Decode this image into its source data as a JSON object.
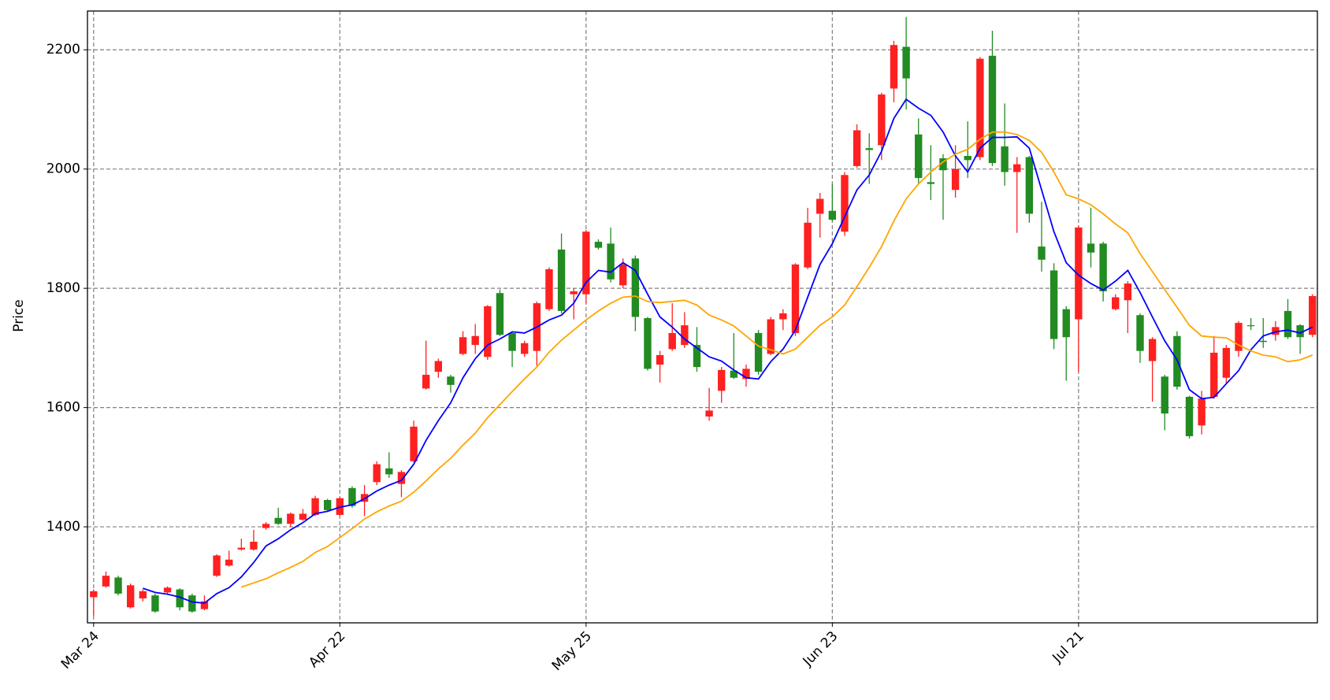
{
  "chart_data": {
    "type": "candlestick",
    "ylabel": "Price",
    "categories": [
      "Mar 24",
      null,
      null,
      null,
      null,
      null,
      null,
      null,
      null,
      null,
      null,
      null,
      null,
      null,
      null,
      null,
      null,
      null,
      null,
      null,
      "Apr 22",
      null,
      null,
      null,
      null,
      null,
      null,
      null,
      null,
      null,
      null,
      null,
      null,
      null,
      null,
      null,
      null,
      null,
      null,
      null,
      "May 25",
      null,
      null,
      null,
      null,
      null,
      null,
      null,
      null,
      null,
      null,
      null,
      null,
      null,
      null,
      null,
      null,
      null,
      null,
      null,
      "Jun 23",
      null,
      null,
      null,
      null,
      null,
      null,
      null,
      null,
      null,
      null,
      null,
      null,
      null,
      null,
      null,
      null,
      null,
      null,
      null,
      "Jul 21",
      null,
      null,
      null,
      null,
      null,
      null,
      null,
      null,
      null,
      null,
      null,
      null,
      null,
      null,
      null,
      null,
      null,
      null,
      null
    ],
    "open": [
      1282,
      1300,
      1315,
      1265,
      1280,
      1285,
      1290,
      1295,
      1285,
      1262,
      1318,
      1335,
      1362,
      1362,
      1398,
      1415,
      1405,
      1412,
      1420,
      1445,
      1420,
      1465,
      1442,
      1475,
      1498,
      1472,
      1510,
      1632,
      1660,
      1652,
      1690,
      1705,
      1685,
      1792,
      1725,
      1690,
      1695,
      1765,
      1865,
      1790,
      1790,
      1878,
      1875,
      1805,
      1850,
      1750,
      1672,
      1698,
      1705,
      1705,
      1585,
      1628,
      1662,
      1648,
      1725,
      1690,
      1748,
      1725,
      1835,
      1925,
      1930,
      1895,
      2005,
      2035,
      2040,
      2135,
      2205,
      2058,
      1978,
      2018,
      1965,
      2022,
      2020,
      2190,
      2038,
      1995,
      2020,
      1870,
      1830,
      1765,
      1748,
      1875,
      1875,
      1765,
      1780,
      1755,
      1678,
      1652,
      1720,
      1618,
      1570,
      1618,
      1650,
      1695,
      1738,
      1712,
      1722,
      1762,
      1738,
      1722
    ],
    "high": [
      1295,
      1325,
      1318,
      1305,
      1295,
      1288,
      1300,
      1297,
      1288,
      1285,
      1354,
      1360,
      1380,
      1395,
      1408,
      1432,
      1424,
      1430,
      1452,
      1447,
      1450,
      1468,
      1470,
      1510,
      1525,
      1495,
      1578,
      1712,
      1682,
      1655,
      1728,
      1740,
      1772,
      1798,
      1728,
      1712,
      1778,
      1835,
      1892,
      1800,
      1898,
      1882,
      1902,
      1850,
      1855,
      1752,
      1695,
      1775,
      1760,
      1735,
      1633,
      1668,
      1725,
      1672,
      1730,
      1752,
      1765,
      1842,
      1935,
      1960,
      1975,
      1995,
      2075,
      2060,
      2128,
      2215,
      2255,
      2085,
      2040,
      2025,
      2040,
      2080,
      2188,
      2232,
      2110,
      2020,
      2022,
      1945,
      1842,
      1770,
      1905,
      1935,
      1878,
      1790,
      1812,
      1758,
      1718,
      1655,
      1728,
      1620,
      1628,
      1720,
      1705,
      1745,
      1750,
      1750,
      1745,
      1782,
      1740,
      1790
    ],
    "low": [
      1250,
      1298,
      1285,
      1263,
      1275,
      1256,
      1288,
      1260,
      1256,
      1260,
      1316,
      1333,
      1360,
      1360,
      1395,
      1403,
      1400,
      1410,
      1418,
      1425,
      1418,
      1432,
      1418,
      1470,
      1482,
      1450,
      1508,
      1630,
      1650,
      1625,
      1688,
      1690,
      1680,
      1720,
      1668,
      1685,
      1670,
      1762,
      1758,
      1748,
      1775,
      1865,
      1810,
      1800,
      1728,
      1662,
      1642,
      1695,
      1700,
      1660,
      1578,
      1608,
      1648,
      1635,
      1655,
      1688,
      1730,
      1720,
      1832,
      1885,
      1912,
      1888,
      2002,
      1975,
      2015,
      2112,
      2100,
      1975,
      1948,
      1915,
      1952,
      1985,
      2015,
      2005,
      1972,
      1893,
      1910,
      1828,
      1698,
      1645,
      1660,
      1835,
      1778,
      1763,
      1725,
      1675,
      1610,
      1562,
      1630,
      1548,
      1555,
      1615,
      1640,
      1685,
      1730,
      1700,
      1712,
      1715,
      1690,
      1718
    ],
    "close": [
      1292,
      1318,
      1288,
      1302,
      1292,
      1258,
      1298,
      1265,
      1258,
      1275,
      1352,
      1345,
      1365,
      1375,
      1405,
      1405,
      1422,
      1422,
      1448,
      1428,
      1448,
      1435,
      1455,
      1505,
      1488,
      1492,
      1568,
      1655,
      1678,
      1638,
      1718,
      1720,
      1770,
      1722,
      1695,
      1708,
      1775,
      1832,
      1762,
      1795,
      1895,
      1868,
      1815,
      1840,
      1752,
      1665,
      1688,
      1725,
      1738,
      1668,
      1595,
      1663,
      1650,
      1665,
      1660,
      1748,
      1758,
      1840,
      1910,
      1950,
      1915,
      1990,
      2065,
      2032,
      2125,
      2208,
      2152,
      1985,
      1975,
      1998,
      2000,
      2015,
      2185,
      2010,
      1995,
      2008,
      1925,
      1848,
      1715,
      1718,
      1902,
      1860,
      1795,
      1785,
      1808,
      1695,
      1715,
      1590,
      1635,
      1552,
      1615,
      1692,
      1700,
      1742,
      1737,
      1710,
      1735,
      1718,
      1718,
      1787
    ],
    "up_color": "#ff2020",
    "down_color": "#228b22",
    "series": [
      {
        "color": "#0000ff",
        "values": [
          null,
          null,
          null,
          null,
          1297,
          1290,
          1287,
          1282,
          1274,
          1272,
          1288,
          1298,
          1316,
          1340,
          1368,
          1380,
          1395,
          1407,
          1422,
          1426,
          1433,
          1437,
          1447,
          1460,
          1470,
          1478,
          1505,
          1545,
          1578,
          1608,
          1650,
          1682,
          1705,
          1715,
          1727,
          1725,
          1735,
          1747,
          1755,
          1775,
          1810,
          1830,
          1827,
          1843,
          1830,
          1790,
          1752,
          1735,
          1715,
          1700,
          1685,
          1678,
          1663,
          1650,
          1648,
          1677,
          1698,
          1730,
          1785,
          1840,
          1875,
          1920,
          1965,
          1990,
          2030,
          2085,
          2117,
          2102,
          2090,
          2062,
          2022,
          1995,
          2035,
          2053,
          2053,
          2054,
          2035,
          1965,
          1895,
          1843,
          1822,
          1808,
          1797,
          1812,
          1830,
          1793,
          1752,
          1712,
          1680,
          1630,
          1615,
          1617,
          1640,
          1662,
          1697,
          1720,
          1727,
          1730,
          1725,
          1735
        ]
      },
      {
        "color": "#ffa500",
        "values": [
          null,
          null,
          null,
          null,
          null,
          null,
          null,
          null,
          null,
          null,
          null,
          null,
          1299,
          1306,
          1313,
          1323,
          1332,
          1342,
          1357,
          1367,
          1382,
          1397,
          1413,
          1425,
          1435,
          1443,
          1458,
          1477,
          1497,
          1515,
          1537,
          1557,
          1583,
          1605,
          1627,
          1648,
          1668,
          1693,
          1713,
          1730,
          1747,
          1762,
          1775,
          1785,
          1787,
          1778,
          1776,
          1778,
          1780,
          1772,
          1755,
          1747,
          1737,
          1720,
          1703,
          1697,
          1690,
          1698,
          1718,
          1738,
          1752,
          1772,
          1803,
          1835,
          1870,
          1913,
          1950,
          1975,
          1995,
          2012,
          2025,
          2033,
          2050,
          2062,
          2062,
          2058,
          2048,
          2028,
          1995,
          1957,
          1950,
          1940,
          1925,
          1908,
          1893,
          1858,
          1828,
          1798,
          1768,
          1738,
          1720,
          1718,
          1717,
          1705,
          1695,
          1688,
          1685,
          1677,
          1680,
          1688
        ]
      }
    ],
    "xlim": [
      -0.5,
      99.4
    ],
    "ylim": [
      1239,
      2265
    ],
    "yticks": [
      1400,
      1600,
      1800,
      2000,
      2200
    ],
    "grid": true
  }
}
